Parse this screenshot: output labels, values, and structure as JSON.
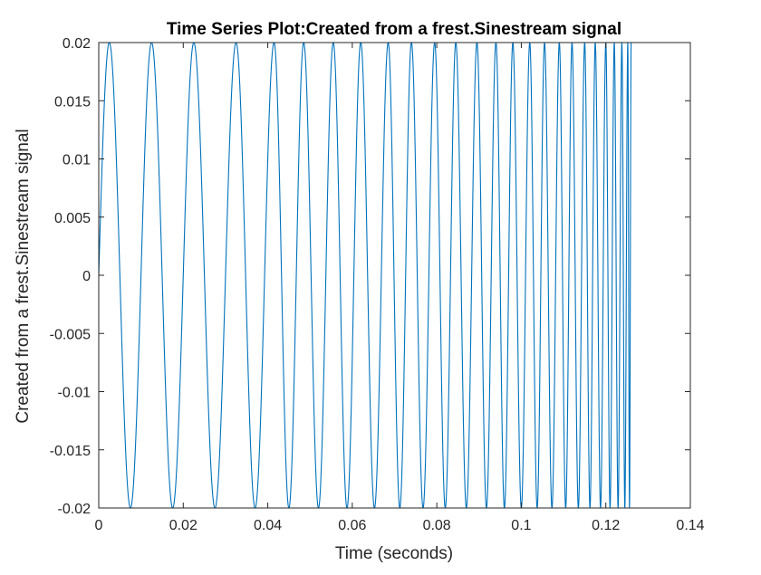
{
  "chart_data": {
    "type": "line",
    "title": "Time Series Plot:Created from a frest.Sinestream signal",
    "xlabel": "Time (seconds)",
    "ylabel": "Created from a frest.Sinestream signal",
    "xlim": [
      0,
      0.14
    ],
    "ylim": [
      -0.02,
      0.02
    ],
    "x_ticks": [
      0,
      0.02,
      0.04,
      0.06,
      0.08,
      0.1,
      0.12,
      0.14
    ],
    "x_tick_labels": [
      "0",
      "0.02",
      "0.04",
      "0.06",
      "0.08",
      "0.1",
      "0.12",
      "0.14"
    ],
    "y_ticks": [
      0.02,
      0.015,
      0.01,
      0.005,
      0,
      -0.005,
      -0.01,
      -0.015,
      -0.02
    ],
    "y_tick_labels": [
      "0.02",
      "0.015",
      "0.01",
      "0.005",
      "0",
      "-0.005",
      "-0.01",
      "-0.015",
      "-0.02"
    ],
    "grid": false,
    "series": [
      {
        "color": "#0072bd",
        "signal": "sine sweep with increasing frequency",
        "amplitude": 0.02,
        "t_start": 0,
        "t_end": 0.126,
        "peak_times": [
          0.0025,
          0.0125,
          0.0225,
          0.0325,
          0.0415,
          0.0485,
          0.0555,
          0.062,
          0.0685,
          0.074,
          0.0795,
          0.0845,
          0.0895,
          0.094,
          0.098,
          0.102,
          0.1055,
          0.109,
          0.112,
          0.115,
          0.1175,
          0.12,
          0.122,
          0.1238,
          0.1252,
          0.126
        ]
      }
    ]
  },
  "colors": {
    "background": "#ffffff",
    "axes_box": "#262626",
    "line": "#0072bd"
  }
}
